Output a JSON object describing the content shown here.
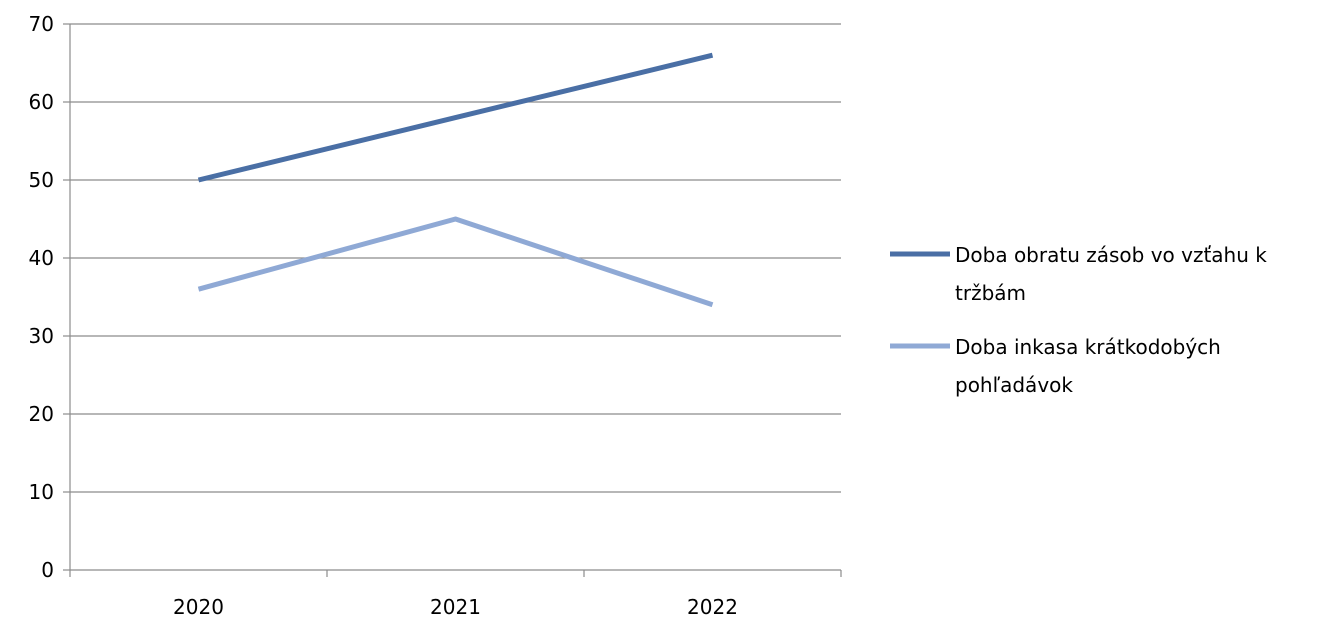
{
  "chart_data": {
    "type": "line",
    "title": "",
    "xlabel": "",
    "ylabel": "",
    "categories": [
      "2020",
      "2021",
      "2022"
    ],
    "ylim": [
      0,
      70
    ],
    "yticks": [
      0,
      10,
      20,
      30,
      40,
      50,
      60,
      70
    ],
    "grid": true,
    "legend_position": "right",
    "series": [
      {
        "name_lines": [
          "Doba obratu zásob vo vzťahu k",
          "tržbám"
        ],
        "values": [
          50,
          58,
          66
        ],
        "color": "#4a6fa5"
      },
      {
        "name_lines": [
          "Doba inkasa krátkodobých",
          "pohľadávok"
        ],
        "values": [
          36,
          45,
          34
        ],
        "color": "#8fa9d5"
      }
    ]
  }
}
